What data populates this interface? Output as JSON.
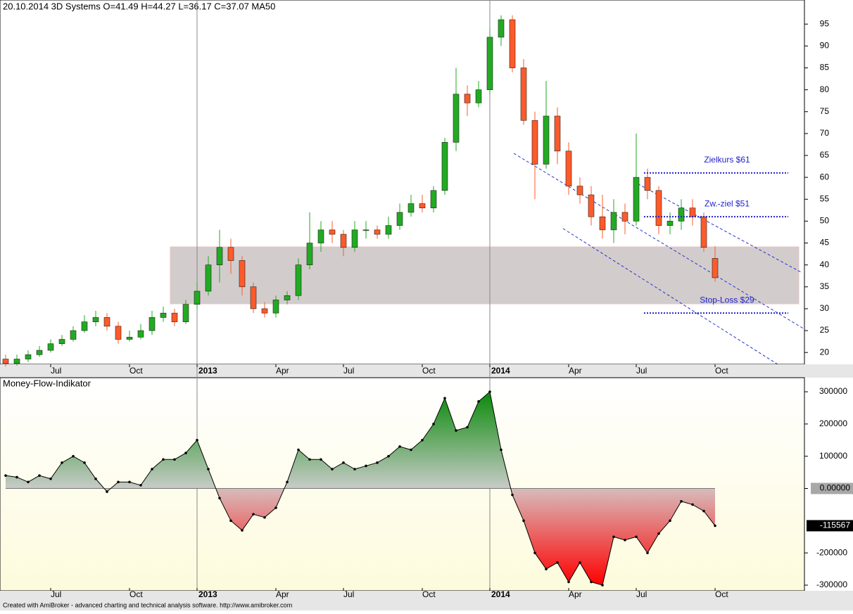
{
  "chart_data": [
    {
      "type": "candlestick",
      "title": "20.10.2014 3D Systems  O=41.49  H=44.27  L=36.17  C=37.07    MA50",
      "categories": [
        null,
        null,
        null,
        null,
        "Jul",
        null,
        null,
        null,
        null,
        null,
        null,
        "Oct",
        null,
        null,
        null,
        null,
        null,
        "2013",
        null,
        null,
        null,
        null,
        null,
        null,
        "Apr",
        null,
        null,
        null,
        null,
        null,
        "Jul",
        null,
        null,
        null,
        null,
        null,
        null,
        "Oct",
        null,
        null,
        null,
        null,
        null,
        "2014",
        null,
        null,
        null,
        null,
        null,
        null,
        "Apr",
        null,
        null,
        null,
        null,
        null,
        "Jul",
        null,
        null,
        null,
        null,
        null,
        null,
        "Oct"
      ],
      "open": [
        18.5,
        17.5,
        18.5,
        19.5,
        20.5,
        22,
        23,
        25,
        27,
        28,
        26,
        23,
        23.5,
        25,
        28,
        29,
        27,
        31,
        34,
        40,
        44,
        41,
        35,
        30,
        29,
        32,
        33,
        40,
        45,
        48,
        47,
        44,
        48,
        48,
        47,
        49,
        52,
        54,
        53,
        57,
        68,
        79,
        77,
        80,
        92,
        96,
        85,
        73,
        63,
        74,
        66,
        58,
        56,
        51,
        48,
        52,
        50,
        60,
        57,
        49,
        50,
        53,
        51,
        41.49
      ],
      "high": [
        19.5,
        19.5,
        20.5,
        21.5,
        23,
        24,
        26,
        28.5,
        29.5,
        29,
        27,
        25,
        26.5,
        29.5,
        30.5,
        30,
        32,
        36,
        42,
        48,
        46,
        42,
        36,
        31.5,
        33,
        34,
        41.5,
        52,
        50,
        50,
        48,
        50,
        50,
        49,
        51,
        54,
        56,
        56,
        58,
        69,
        85,
        81,
        82,
        94,
        97,
        97,
        87,
        75,
        82,
        76,
        68,
        60,
        58,
        56,
        55,
        54,
        70,
        62,
        58,
        52,
        55,
        55,
        52,
        44.27
      ],
      "low": [
        16.8,
        17,
        17.8,
        19,
        20,
        21.5,
        22.5,
        24.5,
        26,
        25,
        22,
        22.5,
        23,
        24,
        27,
        26,
        26.5,
        30,
        33,
        36,
        38,
        33,
        29,
        28,
        28,
        31,
        32,
        39,
        43,
        45,
        42,
        43,
        46,
        46,
        46,
        48,
        51,
        52,
        52,
        56,
        66,
        74,
        76,
        79,
        90,
        84,
        72,
        55,
        62,
        63,
        56,
        54,
        49,
        46,
        45,
        47,
        49,
        55,
        47,
        47,
        48,
        49,
        43,
        36.17
      ],
      "close": [
        17.5,
        18.5,
        19.5,
        20.5,
        22,
        23,
        25,
        27,
        28,
        26,
        23,
        23.5,
        25,
        28,
        29,
        27,
        31,
        34,
        40,
        44,
        41,
        35,
        30,
        29,
        32,
        33,
        40,
        45,
        48,
        47,
        44,
        48,
        48,
        47,
        49,
        52,
        54,
        53,
        57,
        68,
        79,
        77,
        80,
        92,
        96,
        85,
        73,
        63,
        74,
        66,
        58,
        56,
        51,
        48,
        52,
        50,
        60,
        57,
        49,
        50,
        53,
        51,
        44,
        37.07
      ],
      "up_color": "#22aa22",
      "down_color": "#ff5a2a",
      "ylim": [
        17.3,
        100.5
      ],
      "yticks": [
        20,
        25,
        30,
        35,
        40,
        45,
        50,
        55,
        60,
        65,
        70,
        75,
        80,
        85,
        90,
        95
      ],
      "levels": [
        {
          "label": "Zielkurs $61",
          "value": 61
        },
        {
          "label": "Zw.-ziel $51",
          "value": 51
        },
        {
          "label": "Stop-Loss $29",
          "value": 29
        }
      ],
      "level_color": "#2222cc"
    },
    {
      "type": "area",
      "title": "Money-Flow-Indikator",
      "categories": [
        null,
        null,
        null,
        null,
        "Jul",
        null,
        null,
        null,
        null,
        null,
        null,
        "Oct",
        null,
        null,
        null,
        null,
        null,
        "2013",
        null,
        null,
        null,
        null,
        null,
        null,
        "Apr",
        null,
        null,
        null,
        null,
        null,
        "Jul",
        null,
        null,
        null,
        null,
        null,
        null,
        "Oct",
        null,
        null,
        null,
        null,
        null,
        "2014",
        null,
        null,
        null,
        null,
        null,
        null,
        "Apr",
        null,
        null,
        null,
        null,
        null,
        "Jul",
        null,
        null,
        null,
        null,
        null,
        null,
        "Oct"
      ],
      "values": [
        40000,
        35000,
        20000,
        40000,
        30000,
        80000,
        100000,
        80000,
        30000,
        -10000,
        20000,
        20000,
        10000,
        60000,
        90000,
        90000,
        110000,
        150000,
        60000,
        -30000,
        -100000,
        -130000,
        -80000,
        -90000,
        -60000,
        20000,
        120000,
        90000,
        90000,
        60000,
        80000,
        60000,
        70000,
        80000,
        100000,
        130000,
        120000,
        150000,
        200000,
        280000,
        180000,
        190000,
        270000,
        300000,
        120000,
        -20000,
        -100000,
        -200000,
        -250000,
        -230000,
        -290000,
        -230000,
        -290000,
        -300000,
        -150000,
        -160000,
        -150000,
        -200000,
        -140000,
        -100000,
        -40000,
        -50000,
        -70000,
        -115567
      ],
      "last_value_label": -115567,
      "ylim": [
        -317500,
        343700
      ],
      "yticks": [
        300000,
        200000,
        100000,
        {
          "value": 0,
          "label": "0.00000"
        },
        -200000,
        -300000
      ]
    },
    {
      "type": "footer",
      "text": "Created with AmiBroker - advanced charting and technical analysis software. http://www.amibroker.com"
    }
  ]
}
